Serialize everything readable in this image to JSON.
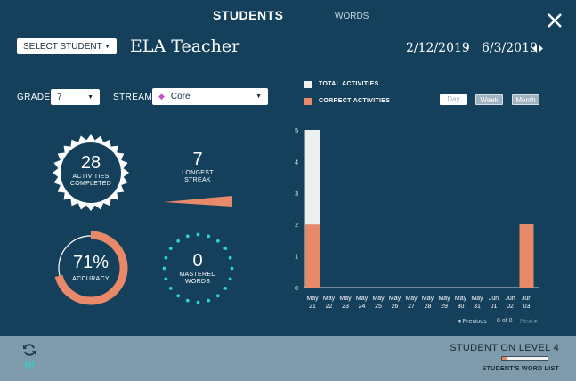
{
  "tabs": {
    "students": "STUDENTS",
    "words": "WORDS"
  },
  "header": {
    "select_student": "SELECT STUDENT",
    "teacher_name": "ELA Teacher",
    "date_start": "2/12/2019",
    "date_sep": "-",
    "date_end": "6/3/2019"
  },
  "filters": {
    "grade_label": "GRADE",
    "grade_value": "7",
    "stream_label": "STREAM",
    "stream_value": "Core"
  },
  "stats": {
    "activities_value": "28",
    "activities_label_1": "ACTIVITIES",
    "activities_label_2": "COMPLETED",
    "streak_value": "7",
    "streak_label_1": "LONGEST",
    "streak_label_2": "STREAK",
    "accuracy_value": "71%",
    "accuracy_label": "ACCURACY",
    "accuracy_fraction": 0.71,
    "mastered_value": "0",
    "mastered_label_1": "MASTERED",
    "mastered_label_2": "WORDS"
  },
  "legend": {
    "total": "TOTAL ACTIVITIES",
    "correct": "CORRECT ACTIVITIES"
  },
  "periods": {
    "day": "Day",
    "week": "Week",
    "month": "Month"
  },
  "pager": {
    "previous": "◂ Previous",
    "page": "8 of 8",
    "next": "Next ▸"
  },
  "footer": {
    "level": "STUDENT ON LEVEL 4",
    "word_list": "STUDENT'S WORD LIST",
    "level_progress": 0.12
  },
  "colors": {
    "background": "#15405c",
    "total": "#eef0ef",
    "correct": "#e8896a",
    "teal": "#2fd3c9",
    "footer": "#7f9aab"
  },
  "chart_data": {
    "type": "bar",
    "ylim": [
      0,
      5
    ],
    "yticks": [
      "0",
      "1",
      "2",
      "3",
      "4",
      "5"
    ],
    "categories": [
      [
        "May",
        "21"
      ],
      [
        "May",
        "22"
      ],
      [
        "May",
        "23"
      ],
      [
        "May",
        "24"
      ],
      [
        "May",
        "25"
      ],
      [
        "May",
        "26"
      ],
      [
        "May",
        "27"
      ],
      [
        "May",
        "28"
      ],
      [
        "May",
        "29"
      ],
      [
        "May",
        "30"
      ],
      [
        "May",
        "31"
      ],
      [
        "Jun",
        "01"
      ],
      [
        "Jun",
        "02"
      ],
      [
        "Jun",
        "03"
      ]
    ],
    "series": [
      {
        "name": "TOTAL ACTIVITIES",
        "values": [
          5,
          0,
          0,
          0,
          0,
          0,
          0,
          0,
          0,
          0,
          0,
          0,
          0,
          2
        ]
      },
      {
        "name": "CORRECT ACTIVITIES",
        "values": [
          2,
          0,
          0,
          0,
          0,
          0,
          0,
          0,
          0,
          0,
          0,
          0,
          0,
          2
        ]
      }
    ]
  }
}
